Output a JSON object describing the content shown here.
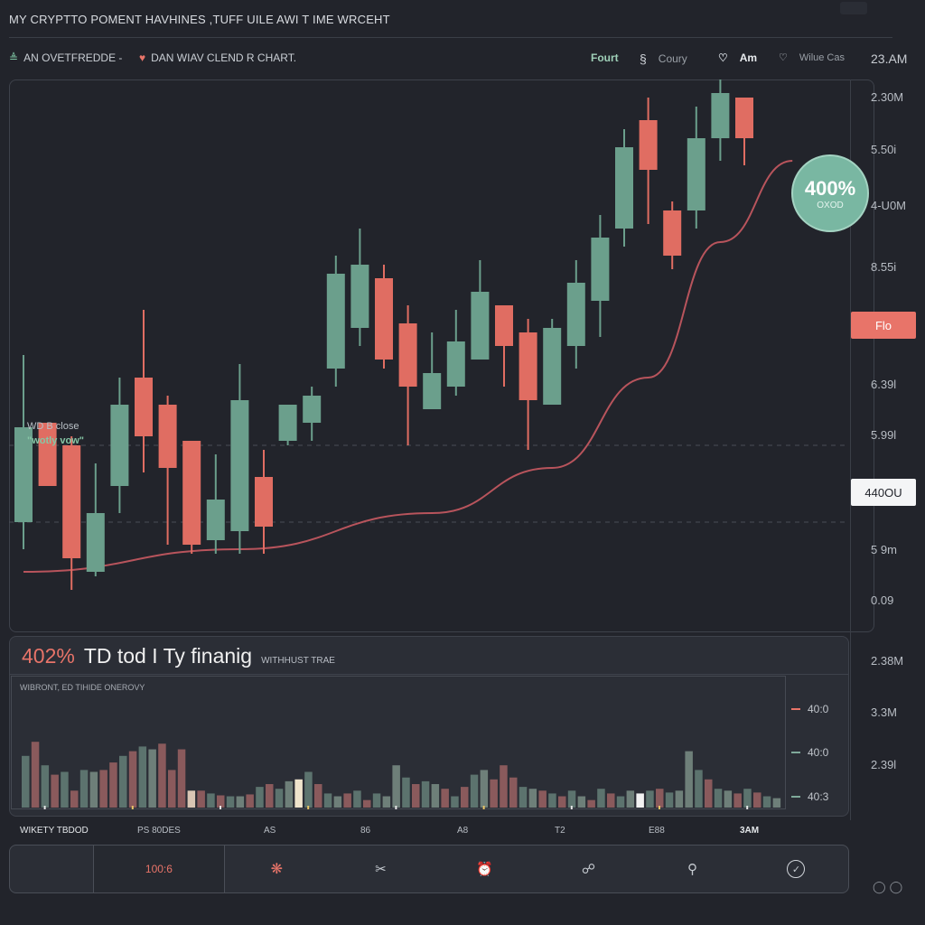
{
  "title": "MY CRYPTTO POMENT HAVHINES ,TUFF UILE AWI T IME WRCEHT",
  "header": {
    "left_items": [
      {
        "icon": "double-chevron-icon",
        "label": "AN OVETFREDDE -"
      },
      {
        "icon": "heart-icon",
        "label": "DAN WIAV CLEND R CHART."
      }
    ],
    "right_items": [
      {
        "icon": "",
        "label": "Fourt"
      },
      {
        "icon": "bookmark-icon",
        "label": "Coury"
      },
      {
        "icon": "shield-icon",
        "label": "Am"
      },
      {
        "icon": "shield-icon",
        "label": "Wilue Cas"
      }
    ],
    "time": "23.AM"
  },
  "colors": {
    "up": "#6b9f8c",
    "down": "#e06d62",
    "trend": "#b8545c",
    "badge": "#79b7a2"
  },
  "price_labels": [
    "2.30M",
    "5.50i",
    "4-U0M",
    "8.55i",
    "6.39l",
    "5.99l",
    "5 9m",
    "0.09"
  ],
  "price_tags": {
    "flo": "Flo",
    "current": "440OU"
  },
  "badge": {
    "pct": "400%",
    "sub": "OXOD"
  },
  "side_note": {
    "line1": "WD B close",
    "line2": "\"wotly vow\""
  },
  "panel": {
    "pct": "402%",
    "title": "TD tod I Ty finanig",
    "subtitle": "WITHHUST TRAE",
    "caption": "WIBRONT, ED TIHIDE ONEROVY",
    "right_labels": [
      "2.38M",
      "3.3M",
      "2.39l"
    ],
    "axis_labels": [
      "40:0",
      "40:0",
      "40:3"
    ]
  },
  "x_labels": [
    "WIKETY TBDOD",
    "PS 80DES",
    "AS",
    "86",
    "A8",
    "T2",
    "E88",
    "3AM"
  ],
  "toolbar": {
    "pct": "100:6",
    "icons": [
      "grid-icon",
      "scissors-icon",
      "alarm-icon",
      "network-icon",
      "camera-icon",
      "check-circle-icon"
    ]
  },
  "chart_data": [
    {
      "type": "candlestick",
      "title": "DAN WIAV CLEND R CHART.",
      "ylim": [
        0,
        100
      ],
      "grid": false,
      "reference_lines": [
        35,
        18
      ],
      "candles": [
        {
          "open": 18,
          "close": 39,
          "high": 55,
          "low": 12
        },
        {
          "open": 40,
          "close": 26,
          "high": 40,
          "low": 26
        },
        {
          "open": 35,
          "close": 10,
          "high": 37,
          "low": 3
        },
        {
          "open": 7,
          "close": 20,
          "high": 31,
          "low": 6
        },
        {
          "open": 26,
          "close": 44,
          "high": 50,
          "low": 20
        },
        {
          "open": 50,
          "close": 37,
          "high": 65,
          "low": 29
        },
        {
          "open": 44,
          "close": 30,
          "high": 46,
          "low": 13
        },
        {
          "open": 36,
          "close": 13,
          "high": 36,
          "low": 11
        },
        {
          "open": 14,
          "close": 23,
          "high": 33,
          "low": 11
        },
        {
          "open": 16,
          "close": 45,
          "high": 53,
          "low": 11
        },
        {
          "open": 28,
          "close": 17,
          "high": 34,
          "low": 11
        },
        {
          "open": 36,
          "close": 44,
          "high": 44,
          "low": 35
        },
        {
          "open": 40,
          "close": 46,
          "high": 48,
          "low": 36
        },
        {
          "open": 52,
          "close": 73,
          "high": 77,
          "low": 48
        },
        {
          "open": 61,
          "close": 75,
          "high": 83,
          "low": 57
        },
        {
          "open": 72,
          "close": 54,
          "high": 75,
          "low": 52
        },
        {
          "open": 62,
          "close": 48,
          "high": 66,
          "low": 35
        },
        {
          "open": 43,
          "close": 51,
          "high": 60,
          "low": 43
        },
        {
          "open": 48,
          "close": 58,
          "high": 65,
          "low": 46
        },
        {
          "open": 54,
          "close": 69,
          "high": 76,
          "low": 54
        },
        {
          "open": 66,
          "close": 57,
          "high": 66,
          "low": 48
        },
        {
          "open": 60,
          "close": 45,
          "high": 63,
          "low": 34
        },
        {
          "open": 44,
          "close": 61,
          "high": 63,
          "low": 44
        },
        {
          "open": 57,
          "close": 71,
          "high": 76,
          "low": 52
        },
        {
          "open": 67,
          "close": 81,
          "high": 86,
          "low": 59
        },
        {
          "open": 83,
          "close": 101,
          "high": 105,
          "low": 79
        },
        {
          "open": 107,
          "close": 96,
          "high": 112,
          "low": 84
        },
        {
          "open": 87,
          "close": 77,
          "high": 89,
          "low": 74
        },
        {
          "open": 87,
          "close": 103,
          "high": 110,
          "low": 83
        },
        {
          "open": 103,
          "close": 113,
          "high": 117,
          "low": 98
        },
        {
          "open": 112,
          "close": 103,
          "high": 112,
          "low": 97
        }
      ],
      "trend_line": [
        {
          "x": 0,
          "y": 7
        },
        {
          "x": 9,
          "y": 12
        },
        {
          "x": 17,
          "y": 20
        },
        {
          "x": 22,
          "y": 30
        },
        {
          "x": 26,
          "y": 50
        },
        {
          "x": 29,
          "y": 80
        },
        {
          "x": 32,
          "y": 98
        }
      ]
    },
    {
      "type": "bar",
      "title": "WIBRONT, ED TIHIDE ONEROVY",
      "ylim": [
        0,
        100
      ],
      "values": [
        55,
        70,
        45,
        35,
        38,
        18,
        40,
        38,
        40,
        48,
        55,
        60,
        65,
        62,
        68,
        40,
        62,
        18,
        18,
        15,
        13,
        12,
        12,
        14,
        22,
        25,
        20,
        28,
        30,
        38,
        25,
        15,
        12,
        15,
        18,
        8,
        15,
        12,
        45,
        32,
        25,
        28,
        25,
        20,
        12,
        22,
        35,
        40,
        30,
        45,
        32,
        22,
        20,
        18,
        15,
        12,
        18,
        12,
        8,
        20,
        15,
        12,
        18,
        15,
        18,
        20,
        16,
        18,
        60,
        40,
        30,
        20,
        18,
        15,
        20,
        16,
        12,
        10
      ],
      "highlights": [
        {
          "index": 17,
          "color": "#d9c6b4"
        },
        {
          "index": 28,
          "color": "#efe4cc"
        },
        {
          "index": 63,
          "color": "#f2f2f2"
        }
      ]
    }
  ]
}
